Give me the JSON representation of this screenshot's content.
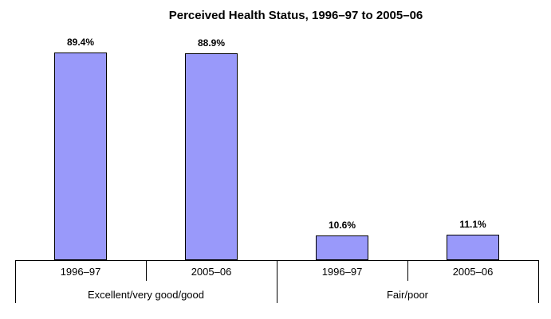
{
  "chart_data": {
    "type": "bar",
    "title": "Perceived Health Status, 1996–97 to 2005–06",
    "ylabel": "",
    "xlabel": "",
    "ylim": [
      0,
      100
    ],
    "grid": false,
    "legend": false,
    "bar_color": "#9999fa",
    "bar_border_color": "#000000",
    "axis_color": "#000000",
    "groups": [
      {
        "label": "Excellent/very good/good",
        "items": [
          {
            "category": "1996–97",
            "value": 89.4,
            "label": "89.4%"
          },
          {
            "category": "2005–06",
            "value": 88.9,
            "label": "88.9%"
          }
        ]
      },
      {
        "label": "Fair/poor",
        "items": [
          {
            "category": "1996–97",
            "value": 10.6,
            "label": "10.6%"
          },
          {
            "category": "2005–06",
            "value": 11.1,
            "label": "11.1%"
          }
        ]
      }
    ]
  }
}
